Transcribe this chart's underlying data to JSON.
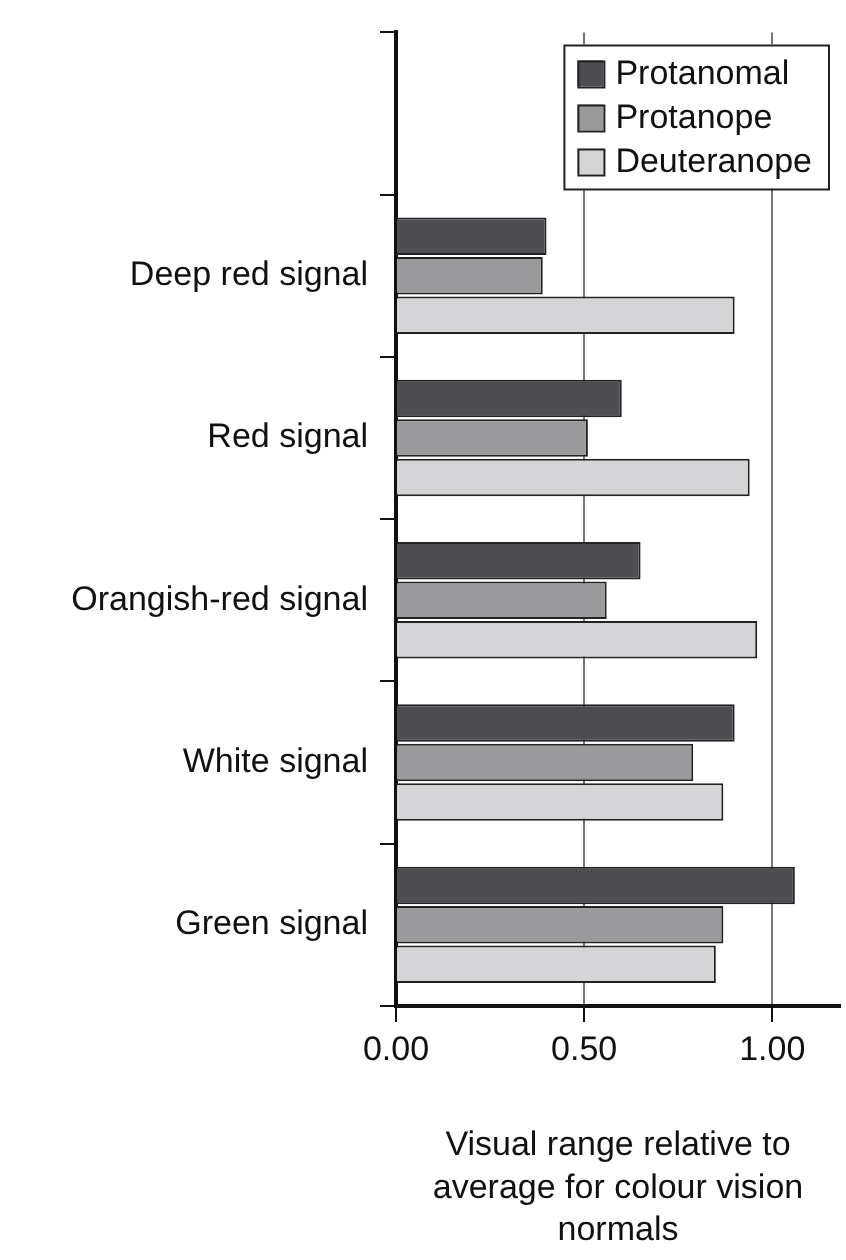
{
  "chart_data": {
    "type": "bar",
    "orientation": "horizontal",
    "categories": [
      null,
      "Deep red signal",
      "Red signal",
      "Orangish-red signal",
      "White signal",
      "Green signal"
    ],
    "series": [
      {
        "name": "Protanomal",
        "color": "#4d4d52",
        "values": [
          null,
          0.4,
          0.6,
          0.65,
          0.9,
          1.06
        ]
      },
      {
        "name": "Protanope",
        "color": "#9a9a9c",
        "values": [
          null,
          0.39,
          0.51,
          0.56,
          0.79,
          0.87
        ]
      },
      {
        "name": "Deuteranope",
        "color": "#d5d5d7",
        "values": [
          null,
          0.9,
          0.94,
          0.96,
          0.87,
          0.85
        ]
      }
    ],
    "xlabel": "Visual range relative to average for colour vision normals",
    "xlim": [
      0,
      1.18
    ],
    "xticks": [
      {
        "value": 0,
        "label": "0.00"
      },
      {
        "value": 0.5,
        "label": "0.50"
      },
      {
        "value": 1,
        "label": "1.00"
      }
    ],
    "grid": "x",
    "legend": "top right"
  }
}
